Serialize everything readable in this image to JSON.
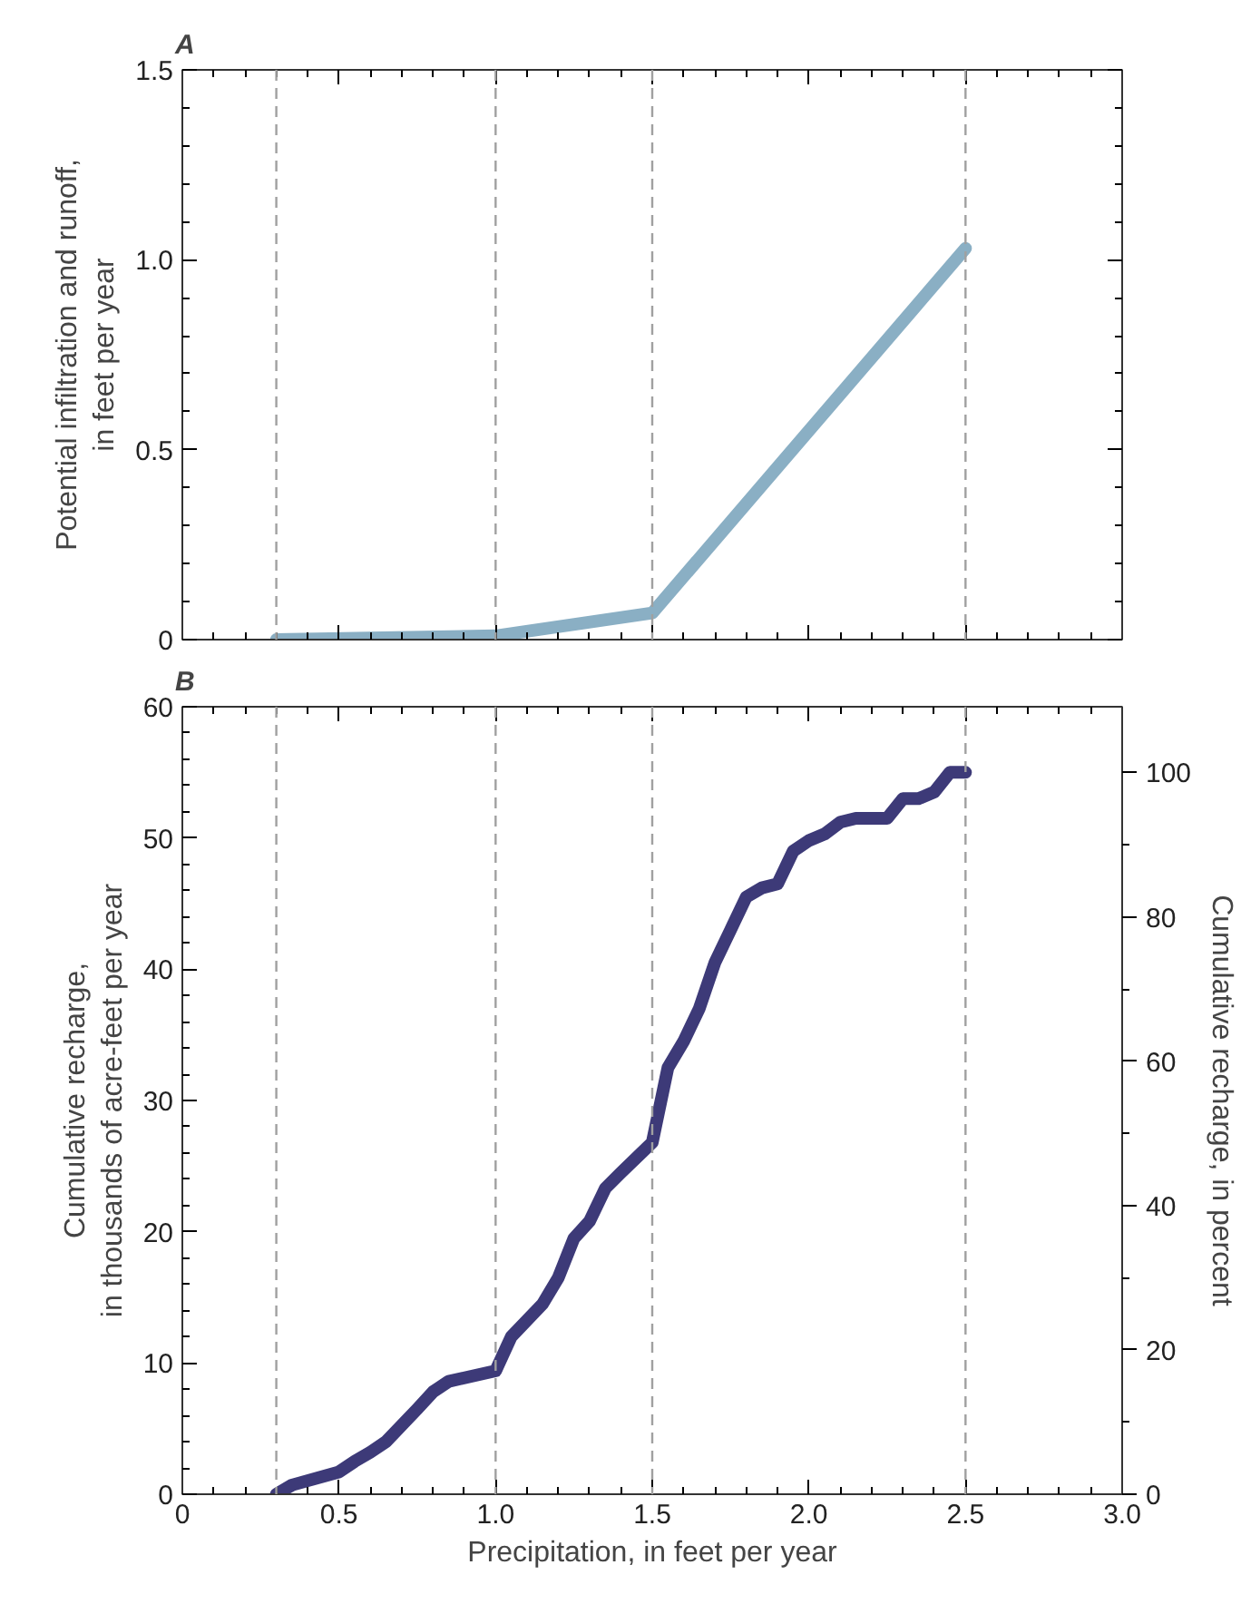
{
  "chart_data": [
    {
      "type": "line",
      "title": "A",
      "ylabel": "Potential infiltration and runoff,\nin feet per year",
      "x": [
        0.3,
        1.0,
        1.5,
        2.5
      ],
      "series": [
        {
          "color": "#8aafc4",
          "values": [
            0,
            0.01,
            0.07,
            1.03
          ]
        }
      ],
      "xlim": [
        0,
        3.0
      ],
      "xticks": [
        0,
        0.5,
        1.0,
        1.5,
        2.0,
        2.5,
        3.0
      ],
      "ylim": [
        0,
        1.5
      ],
      "yticks": [
        0,
        {
          "value": 0.5,
          "label": "0.5"
        },
        {
          "value": 1.0,
          "label": "1.0"
        },
        {
          "value": 1.5,
          "label": "1.5"
        }
      ],
      "tick_labels": "y",
      "grid": false,
      "ref_lines": [
        {
          "axis": "x",
          "value": 0.3,
          "color": "#a0a0a0",
          "line_style": "dashed"
        },
        {
          "axis": "x",
          "value": 1.0,
          "color": "#a0a0a0",
          "line_style": "dashed"
        },
        {
          "axis": "x",
          "value": 1.5,
          "color": "#a0a0a0",
          "line_style": "dashed"
        },
        {
          "axis": "x",
          "value": 2.5,
          "color": "#a0a0a0",
          "line_style": "dashed"
        }
      ]
    },
    {
      "type": "line",
      "title": "B",
      "xlabel": "Precipitation, in feet per year",
      "ylabel": "Cumulative recharge,\nin thousands of acre-feet per year",
      "y2label": "Cumulative recharge, in percent",
      "x": [
        0.3,
        0.35,
        0.5,
        0.55,
        0.6,
        0.65,
        0.75,
        0.8,
        0.85,
        1.0,
        1.05,
        1.15,
        1.2,
        1.25,
        1.3,
        1.35,
        1.4,
        1.5,
        1.55,
        1.6,
        1.65,
        1.7,
        1.75,
        1.8,
        1.85,
        1.9,
        1.95,
        2.0,
        2.05,
        2.1,
        2.15,
        2.25,
        2.3,
        2.35,
        2.4,
        2.45,
        2.5
      ],
      "series": [
        {
          "color": "#3d3a78",
          "values": [
            0,
            0.7,
            1.7,
            2.5,
            3.2,
            4,
            6.5,
            7.8,
            8.6,
            9.4,
            12,
            14.5,
            16.5,
            19.5,
            20.8,
            23.3,
            24.5,
            26.8,
            32.5,
            34.5,
            37,
            40.5,
            43,
            45.5,
            46.2,
            46.5,
            49,
            49.8,
            50.3,
            51.2,
            51.5,
            51.5,
            53,
            53,
            53.5,
            55,
            55
          ]
        }
      ],
      "xlim": [
        0,
        3.0
      ],
      "xticks": [
        0,
        {
          "value": 0.5,
          "label": "0.5"
        },
        {
          "value": 1.0,
          "label": "1.0"
        },
        {
          "value": 1.5,
          "label": "1.5"
        },
        {
          "value": 2.0,
          "label": "2.0"
        },
        {
          "value": 2.5,
          "label": "2.5"
        },
        {
          "value": 3.0,
          "label": "3.0"
        }
      ],
      "ylim": [
        0,
        60
      ],
      "yticks": [
        0,
        10,
        20,
        30,
        40,
        50,
        60
      ],
      "y2lim": [
        0,
        109.1
      ],
      "y2ticks": [
        0,
        20,
        40,
        60,
        80,
        100
      ],
      "grid": false,
      "ref_lines": [
        {
          "axis": "x",
          "value": 0.3,
          "color": "#a0a0a0",
          "line_style": "dashed"
        },
        {
          "axis": "x",
          "value": 1.0,
          "color": "#a0a0a0",
          "line_style": "dashed"
        },
        {
          "axis": "x",
          "value": 1.5,
          "color": "#a0a0a0",
          "line_style": "dashed"
        },
        {
          "axis": "x",
          "value": 2.5,
          "color": "#a0a0a0",
          "line_style": "dashed"
        }
      ]
    }
  ]
}
